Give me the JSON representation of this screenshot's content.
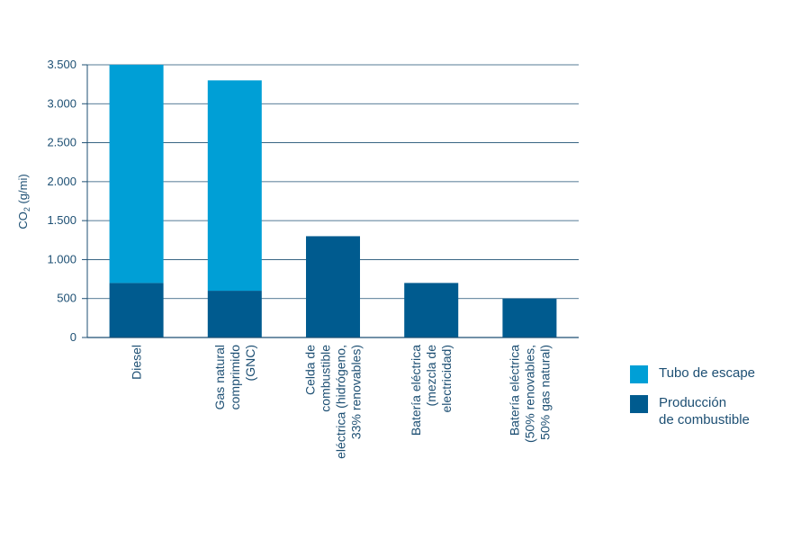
{
  "chart_data": {
    "type": "bar",
    "stacked": true,
    "ylabel": "CO",
    "ylabel_subscript": "2",
    "ylabel_unit": " (g/mi)",
    "ylim": [
      0,
      3500
    ],
    "yticks": [
      0,
      500,
      1000,
      1500,
      2000,
      2500,
      3000,
      3500
    ],
    "ytick_labels": [
      "0",
      "500",
      "1.000",
      "1.500",
      "2.000",
      "2.500",
      "3.000",
      "3.500"
    ],
    "grid": true,
    "legend_position": "right",
    "categories": [
      "Diesel",
      "Gas  natural comprimido (GNC)",
      "Celda de combustible eléctrica (hidrógeno, 33% renovables)",
      "Batería eléctrica (mezcla de electricidad)",
      "Batería eléctrica (50% renovables, 50% gas natural)"
    ],
    "category_lines": [
      [
        "Diesel"
      ],
      [
        "Gas  natural",
        "comprimido",
        "(GNC)"
      ],
      [
        "Celda de",
        "combustible",
        "eléctrica (hidrógeno,",
        "33% renovables)"
      ],
      [
        "Batería eléctrica",
        "(mezcla de",
        "electricidad)"
      ],
      [
        "Batería eléctrica",
        "(50% renovables,",
        "50% gas natural)"
      ]
    ],
    "series": [
      {
        "name": "Producción de combustible",
        "color": "#005b8f",
        "values": [
          700,
          600,
          1300,
          700,
          500
        ]
      },
      {
        "name": "Tubo de escape",
        "color": "#009fd6",
        "values": [
          2800,
          2700,
          0,
          0,
          0
        ]
      }
    ]
  },
  "legend": {
    "items": [
      {
        "lines": [
          "Tubo de escape"
        ],
        "color": "#009fd6"
      },
      {
        "lines": [
          "Producción",
          "de combustible"
        ],
        "color": "#005b8f"
      }
    ]
  }
}
